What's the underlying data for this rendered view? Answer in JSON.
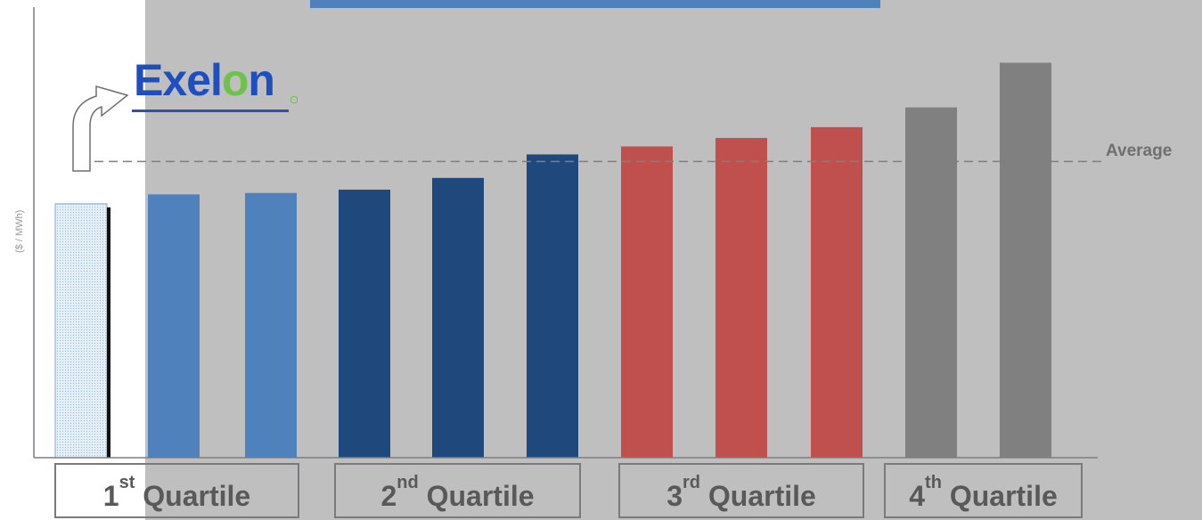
{
  "chart_data": {
    "type": "bar",
    "ylabel": "($ / MWh)",
    "reference_line": {
      "label": "Average",
      "value": 63,
      "style": "dashed"
    },
    "bars": [
      {
        "category": "Exelon",
        "value": 54,
        "color": "#d6e8f4",
        "pattern": "dotted",
        "quartile": 1
      },
      {
        "category": "",
        "value": 56,
        "color": "#4f81bd",
        "quartile": 1
      },
      {
        "category": "",
        "value": 56.3,
        "color": "#4f81bd",
        "quartile": 1
      },
      {
        "category": "",
        "value": 57,
        "color": "#1f497d",
        "quartile": 2
      },
      {
        "category": "",
        "value": 59.5,
        "color": "#1f497d",
        "quartile": 2
      },
      {
        "category": "",
        "value": 64.5,
        "color": "#1f497d",
        "quartile": 2
      },
      {
        "category": "",
        "value": 66.2,
        "color": "#c0504d",
        "quartile": 3
      },
      {
        "category": "",
        "value": 68,
        "color": "#c0504d",
        "quartile": 3
      },
      {
        "category": "",
        "value": 70.3,
        "color": "#c0504d",
        "quartile": 3
      },
      {
        "category": "",
        "value": 74.5,
        "color": "#808080",
        "quartile": 4
      },
      {
        "category": "",
        "value": 84,
        "color": "#808080",
        "quartile": 4
      }
    ],
    "quartiles": [
      {
        "num": "1",
        "sup": "st",
        "label": "Quartile"
      },
      {
        "num": "2",
        "sup": "nd",
        "label": "Quartile"
      },
      {
        "num": "3",
        "sup": "rd",
        "label": "Quartile"
      },
      {
        "num": "4",
        "sup": "th",
        "label": "Quartile"
      }
    ],
    "highlight": {
      "logo_text_a": "Exel",
      "logo_text_o": "o",
      "logo_text_b": "n"
    },
    "colors": {
      "shaded_background": "#bfbfbf",
      "title_banner": "#4f81bd",
      "axis": "#7f7f7f",
      "average_line": "#7f7f7f"
    }
  }
}
